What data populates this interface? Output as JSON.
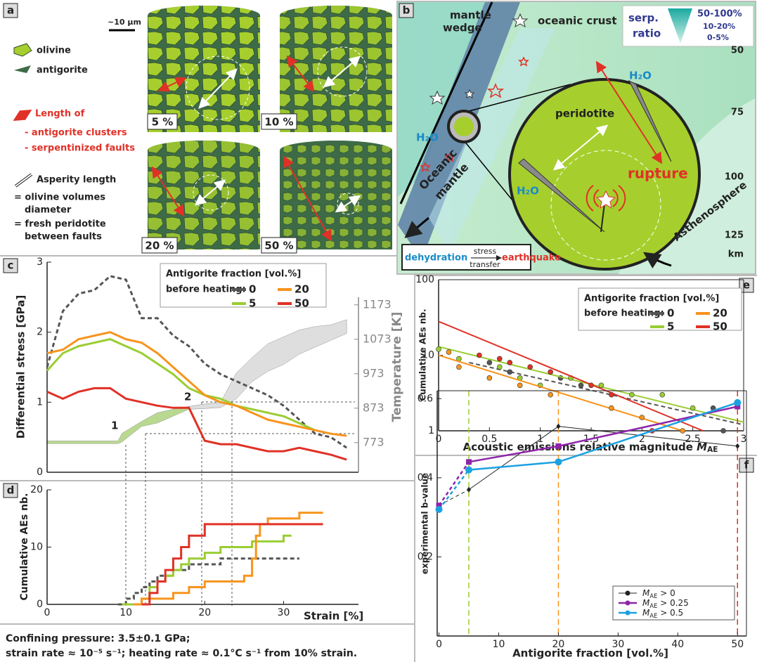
{
  "panel_labels": [
    "a",
    "b",
    "c",
    "d",
    "e",
    "f"
  ],
  "panel_a": {
    "scale_bar": "~10 µm",
    "legend": [
      "olivine",
      "antigorite"
    ],
    "length_of": [
      "Length of",
      "- antigorite clusters",
      "- serpentinized faults"
    ],
    "asperity": [
      "Asperity length",
      "= olivine volumes",
      "diameter",
      "= fresh peridotite",
      "between faults"
    ],
    "fractions": [
      "5 %",
      "10 %",
      "20 %",
      "50 %"
    ]
  },
  "panel_b": {
    "mantle_wedge": [
      "mantle",
      "wedge"
    ],
    "oceanic_crust": "oceanic crust",
    "serp_ratio": [
      "serp.",
      "ratio"
    ],
    "ratio_levels": [
      "50-100%",
      "10-20%",
      "0-5%"
    ],
    "depth_ticks": [
      50,
      75,
      100,
      125
    ],
    "depth_unit": "km",
    "peridotite": "peridotite",
    "rupture": "rupture",
    "water": [
      "H₂O",
      "H₂O",
      "H₂O"
    ],
    "oceanic_mantle": [
      "Oceanic",
      "mantle"
    ],
    "asthenosphere": "Asthenosphere",
    "process": [
      "dehydration",
      "stress",
      "transfer",
      "earthquake"
    ]
  },
  "caption": [
    "Confining pressure: 3.5±0.1 GPa;",
    "strain rate ≈ 10⁻⁵ s⁻¹; heating rate ≈ 0.1°C s⁻¹ from 10% strain."
  ],
  "chart_data": [
    {
      "type": "line",
      "y_label": "Differential stress [GPa]",
      "y2_label": "Temperature [K]",
      "legend_title": "Antigorite fraction [vol.%]",
      "legend_subtitle": "before heating:",
      "x": [
        0,
        2,
        4,
        6,
        8,
        10,
        12,
        14,
        16,
        18,
        20,
        22,
        24,
        26,
        28,
        30,
        32,
        34,
        36,
        38
      ],
      "xlim": [
        0,
        39.5
      ],
      "ylim": [
        0,
        3
      ],
      "yticks": [
        0,
        1,
        2,
        3
      ],
      "y2lim": [
        687,
        1297
      ],
      "y2ticks": [
        773,
        873,
        973,
        1073,
        1173
      ],
      "series": [
        {
          "name": "0",
          "color": "#555555",
          "dashed": true,
          "values": [
            1.5,
            2.3,
            2.55,
            2.6,
            2.8,
            2.75,
            2.2,
            2.2,
            1.95,
            1.8,
            1.55,
            1.4,
            1.3,
            1.2,
            1.1,
            0.95,
            0.75,
            0.55,
            0.5,
            0.35
          ]
        },
        {
          "name": "5",
          "color": "#9acd32",
          "values": [
            1.45,
            1.7,
            1.8,
            1.85,
            1.9,
            1.8,
            1.7,
            1.55,
            1.4,
            1.2,
            1.1,
            1.05,
            0.95,
            0.9,
            0.85,
            0.8,
            0.7,
            0.6,
            null,
            null
          ]
        },
        {
          "name": "20",
          "color": "#f7941d",
          "values": [
            1.7,
            1.75,
            1.9,
            1.95,
            2.0,
            1.9,
            1.85,
            1.7,
            1.5,
            1.3,
            1.1,
            1.0,
            0.95,
            0.85,
            0.75,
            0.7,
            0.65,
            0.6,
            0.55,
            0.52
          ]
        },
        {
          "name": "50",
          "color": "#e03127",
          "values": [
            1.15,
            1.05,
            1.15,
            1.2,
            1.2,
            1.05,
            1.0,
            0.95,
            0.92,
            0.92,
            0.45,
            0.4,
            0.4,
            0.35,
            0.3,
            0.3,
            0.35,
            0.3,
            0.25,
            0.18
          ]
        }
      ],
      "bands": [
        {
          "axis": "y2",
          "color": "#b9d890",
          "x": [
            0,
            9,
            9.5,
            12,
            14,
            16,
            18,
            20,
            22
          ],
          "low": [
            770,
            770,
            775,
            820,
            830,
            850,
            870,
            872,
            875
          ],
          "high": [
            778,
            778,
            800,
            835,
            860,
            870,
            878,
            885,
            890
          ]
        },
        {
          "axis": "y2",
          "color": "#dedede",
          "x": [
            18,
            20,
            22,
            24,
            26,
            28,
            30,
            32,
            34,
            36,
            38
          ],
          "low": [
            870,
            872,
            875,
            900,
            950,
            980,
            1000,
            1030,
            1050,
            1070,
            1090
          ],
          "high": [
            878,
            885,
            890,
            975,
            1020,
            1060,
            1080,
            1100,
            1110,
            1115,
            1130
          ]
        }
      ],
      "annotations": [
        "1",
        "2"
      ]
    },
    {
      "type": "step",
      "x_label": "Strain [%]",
      "y_label": "Cumulative AEs nb.",
      "xlim": [
        0,
        39.5
      ],
      "xticks": [
        0,
        10,
        20,
        30
      ],
      "ylim": [
        0,
        20
      ],
      "yticks": [
        0,
        10,
        20
      ],
      "series": [
        {
          "name": "0",
          "color": "#555555",
          "dashed": true,
          "x": [
            9,
            10,
            11,
            12,
            13,
            14,
            16,
            18,
            22,
            26,
            32
          ],
          "values": [
            0,
            1,
            2,
            3,
            4,
            5,
            6,
            7,
            8,
            8,
            8
          ]
        },
        {
          "name": "5",
          "color": "#9acd32",
          "x": [
            9.5,
            12,
            13,
            14,
            15,
            16,
            17,
            18,
            19,
            20,
            21,
            22,
            24,
            26,
            28,
            30,
            31
          ],
          "values": [
            0,
            1,
            3,
            4,
            5,
            6,
            7,
            8,
            8,
            9,
            9,
            10,
            10,
            11,
            11,
            12,
            12
          ]
        },
        {
          "name": "20",
          "color": "#f7941d",
          "x": [
            11,
            12,
            16,
            18,
            20,
            22,
            24,
            25,
            26,
            26.5,
            27,
            28,
            30,
            32,
            35
          ],
          "values": [
            0,
            1,
            2,
            3,
            4,
            4,
            4,
            5,
            8,
            12,
            14,
            15,
            15,
            16,
            16
          ]
        },
        {
          "name": "50",
          "color": "#e03127",
          "x": [
            12,
            13,
            14,
            15,
            16,
            17,
            18,
            19,
            20,
            21,
            35
          ],
          "values": [
            0,
            2,
            4,
            6,
            8,
            10,
            12,
            12,
            14,
            14,
            14
          ]
        }
      ]
    },
    {
      "type": "scatter",
      "log_y": true,
      "x_label": "Acoustic emissions relative magnitude MAE",
      "y_label": "Cumulative AEs nb.",
      "legend_title": "Antigorite fraction [vol.%]",
      "legend_subtitle": "before heating:",
      "xlim": [
        0,
        3
      ],
      "xticks": [
        0,
        0.5,
        1,
        1.5,
        2,
        2.5,
        3
      ],
      "ylim": [
        1,
        100
      ],
      "yticks": [
        1,
        10,
        100
      ],
      "series": [
        {
          "name": "0",
          "color": "#555555",
          "dashed": true,
          "x": [
            0.5,
            0.7,
            1.2,
            1.4,
            2.7,
            2.8
          ],
          "values": [
            8,
            6,
            5,
            4,
            2,
            1
          ],
          "fit_x": [
            0.3,
            3
          ],
          "fit_y": [
            8,
            1.2
          ]
        },
        {
          "name": "5",
          "color": "#9acd32",
          "x": [
            0,
            0.2,
            0.6,
            0.8,
            1,
            1.3,
            1.6,
            1.9,
            2.2,
            2.5
          ],
          "values": [
            12,
            9,
            7,
            5,
            4,
            5,
            4,
            3,
            3,
            2
          ],
          "fit_x": [
            0,
            3
          ],
          "fit_y": [
            13,
            1.3
          ]
        },
        {
          "name": "20",
          "color": "#f7941d",
          "x": [
            0.1,
            0.2,
            0.5,
            0.8,
            1.1,
            1.7,
            2,
            2.4
          ],
          "values": [
            11,
            7,
            5,
            4,
            3,
            2,
            1.5,
            1
          ],
          "fit_x": [
            0,
            2.4
          ],
          "fit_y": [
            10,
            1
          ]
        },
        {
          "name": "50",
          "color": "#e03127",
          "x": [
            0.4,
            0.6,
            0.7,
            0.9,
            1.1,
            1.5,
            1.7,
            2.1
          ],
          "values": [
            10,
            9,
            8,
            7,
            6,
            4,
            3,
            1
          ],
          "fit_x": [
            0,
            2.6
          ],
          "fit_y": [
            28,
            1
          ]
        }
      ]
    },
    {
      "type": "line",
      "x_label": "Antigorite fraction [vol.%]",
      "y_label": "experimental b-value",
      "x": [
        0,
        5,
        20,
        50
      ],
      "xlim": [
        -0.3,
        51.5
      ],
      "xticks": [
        0,
        10,
        20,
        30,
        40,
        50
      ],
      "ylim": [
        0,
        0.62
      ],
      "yticks": [
        0.2,
        0.4,
        0.6
      ],
      "dash_first_segment": true,
      "vlines": [
        {
          "value": 5,
          "color": "#9acd32"
        },
        {
          "value": 20,
          "color": "#f7941d"
        },
        {
          "value": 50,
          "color": "#e03127"
        }
      ],
      "series": [
        {
          "name": "MAE > 0",
          "color": "#222222",
          "marker": "diamond",
          "values": [
            0.33,
            0.37,
            0.53,
            0.48
          ]
        },
        {
          "name": "MAE > 0.25",
          "color": "#8e24aa",
          "marker": "square",
          "values": [
            0.33,
            0.44,
            0.48,
            0.58
          ]
        },
        {
          "name": "MAE > 0.5",
          "color": "#1ba1e2",
          "marker": "circle",
          "values": [
            0.32,
            0.42,
            0.44,
            0.59
          ]
        }
      ]
    }
  ]
}
